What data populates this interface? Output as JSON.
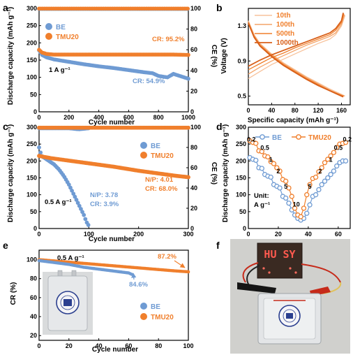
{
  "colors": {
    "be": "#6f9bd3",
    "tmu": "#f07f2c",
    "axis": "#000000"
  },
  "panel_labels": {
    "a": "a",
    "b": "b",
    "c": "c",
    "d": "d",
    "e": "e",
    "f": "f"
  },
  "photo_f": {
    "display_text": "HU SY"
  },
  "chart_data": [
    {
      "panel": "a",
      "type": "scatter",
      "xlabel": "Cycle number",
      "ylabel": "Discharge capacity (mAh g⁻¹)",
      "y2label": "CE (%)",
      "xlim": [
        0,
        1000
      ],
      "ylim": [
        0,
        300
      ],
      "y2lim": [
        0,
        100
      ],
      "xticks": [
        0,
        200,
        400,
        600,
        800,
        1000
      ],
      "yticks": [
        0,
        50,
        100,
        150,
        200,
        250,
        300
      ],
      "y2ticks": [
        0,
        20,
        40,
        60,
        80,
        100
      ],
      "legend": [
        "BE",
        "TMU20"
      ],
      "annotations": {
        "rate": "1 A g⁻¹",
        "cr_tmu": "CR: 95.2%",
        "cr_be": "CR: 54.9%"
      },
      "series": [
        {
          "name": "BE",
          "axis": "left",
          "x": [
            0,
            20,
            50,
            100,
            200,
            300,
            400,
            500,
            600,
            700,
            760,
            800,
            860,
            900,
            950,
            1000
          ],
          "y": [
            178,
            165,
            158,
            152,
            145,
            138,
            132,
            127,
            121,
            115,
            112,
            104,
            100,
            110,
            103,
            96
          ]
        },
        {
          "name": "TMU20",
          "axis": "left",
          "x": [
            0,
            20,
            50,
            100,
            200,
            300,
            400,
            500,
            600,
            700,
            800,
            900,
            1000
          ],
          "y": [
            180,
            172,
            168,
            166,
            166,
            166,
            166,
            166,
            166,
            166,
            166,
            166,
            165
          ]
        },
        {
          "name": "BE",
          "axis": "right",
          "x": [
            0,
            100,
            200,
            300,
            400,
            500,
            600,
            700,
            800,
            900,
            1000
          ],
          "y": [
            99.5,
            99.5,
            99.5,
            99.5,
            99.5,
            99.5,
            99.5,
            99.5,
            99.5,
            99.5,
            99.5
          ]
        },
        {
          "name": "TMU20",
          "axis": "right",
          "x": [
            0,
            100,
            200,
            300,
            400,
            500,
            600,
            700,
            800,
            900,
            1000
          ],
          "y": [
            99.8,
            99.8,
            99.8,
            99.8,
            99.8,
            99.8,
            99.8,
            99.8,
            99.8,
            99.8,
            99.8
          ]
        }
      ]
    },
    {
      "panel": "b",
      "type": "line",
      "xlabel": "Specific capacity (mAh g⁻¹)",
      "ylabel": "Voltage (V)",
      "xlim": [
        0,
        175
      ],
      "ylim": [
        0.4,
        1.5
      ],
      "xticks": [
        0,
        40,
        80,
        120,
        160
      ],
      "yticks": [
        0.5,
        0.9,
        1.3
      ],
      "legend": [
        "10th",
        "100th",
        "500th",
        "1000th"
      ],
      "series": [
        {
          "name": "10th",
          "branch": "discharge",
          "x": [
            0,
            10,
            20,
            40,
            60,
            80,
            100,
            120,
            140,
            160,
            166
          ],
          "y": [
            1.36,
            1.2,
            1.1,
            0.98,
            0.88,
            0.8,
            0.72,
            0.65,
            0.58,
            0.52,
            0.5
          ]
        },
        {
          "name": "10th",
          "branch": "charge",
          "x": [
            0,
            20,
            40,
            60,
            80,
            100,
            120,
            140,
            150,
            160,
            166
          ],
          "y": [
            0.7,
            0.78,
            0.86,
            0.92,
            0.98,
            1.04,
            1.1,
            1.15,
            1.2,
            1.3,
            1.42
          ]
        },
        {
          "name": "100th",
          "branch": "discharge",
          "x": [
            0,
            10,
            20,
            40,
            60,
            80,
            100,
            120,
            140,
            160,
            165
          ],
          "y": [
            1.35,
            1.19,
            1.09,
            0.97,
            0.87,
            0.79,
            0.71,
            0.64,
            0.57,
            0.51,
            0.5
          ]
        },
        {
          "name": "100th",
          "branch": "charge",
          "x": [
            0,
            20,
            40,
            60,
            80,
            100,
            120,
            140,
            150,
            160,
            165
          ],
          "y": [
            0.75,
            0.83,
            0.9,
            0.96,
            1.02,
            1.08,
            1.13,
            1.18,
            1.22,
            1.32,
            1.43
          ]
        },
        {
          "name": "500th",
          "branch": "discharge",
          "x": [
            0,
            10,
            20,
            40,
            60,
            80,
            100,
            120,
            140,
            160,
            164
          ],
          "y": [
            1.34,
            1.18,
            1.08,
            0.96,
            0.86,
            0.78,
            0.7,
            0.63,
            0.56,
            0.51,
            0.5
          ]
        },
        {
          "name": "500th",
          "branch": "charge",
          "x": [
            0,
            20,
            40,
            60,
            80,
            100,
            120,
            140,
            150,
            160,
            164
          ],
          "y": [
            0.8,
            0.87,
            0.94,
            0.99,
            1.05,
            1.1,
            1.15,
            1.2,
            1.25,
            1.34,
            1.44
          ]
        },
        {
          "name": "1000th",
          "branch": "discharge",
          "x": [
            0,
            10,
            20,
            40,
            60,
            80,
            100,
            120,
            140,
            160,
            163
          ],
          "y": [
            1.33,
            1.17,
            1.07,
            0.95,
            0.85,
            0.77,
            0.69,
            0.62,
            0.56,
            0.5,
            0.49
          ]
        },
        {
          "name": "1000th",
          "branch": "charge",
          "x": [
            0,
            20,
            40,
            60,
            80,
            100,
            120,
            140,
            150,
            160,
            163
          ],
          "y": [
            0.84,
            0.91,
            0.97,
            1.02,
            1.07,
            1.12,
            1.17,
            1.22,
            1.27,
            1.36,
            1.45
          ]
        }
      ]
    },
    {
      "panel": "c",
      "type": "scatter",
      "xlabel": "Cycle number",
      "ylabel": "Discharge capacity (mAh g⁻¹)",
      "y2label": "CE (%)",
      "xlim": [
        0,
        300
      ],
      "ylim": [
        0,
        300
      ],
      "y2lim": [
        0,
        100
      ],
      "xticks": [
        0,
        100,
        200,
        300
      ],
      "yticks": [
        0,
        50,
        100,
        150,
        200,
        250,
        300
      ],
      "y2ticks": [
        0,
        20,
        40,
        60,
        80,
        100
      ],
      "legend": [
        "BE",
        "TMU20"
      ],
      "annotations": {
        "rate": "0.5 A g⁻¹",
        "np_be": "N/P: 3.78",
        "cr_be": "CR: 3.9%",
        "np_tmu": "N/P: 4.01",
        "cr_tmu": "CR: 68.0%"
      },
      "series": [
        {
          "name": "BE",
          "axis": "left",
          "x": [
            0,
            5,
            10,
            20,
            30,
            40,
            50,
            60,
            70,
            80,
            90,
            95,
            100
          ],
          "y": [
            240,
            215,
            210,
            200,
            190,
            175,
            155,
            130,
            100,
            70,
            40,
            20,
            8
          ]
        },
        {
          "name": "TMU20",
          "axis": "left",
          "x": [
            0,
            10,
            25,
            50,
            75,
            100,
            125,
            150,
            175,
            200,
            225,
            250,
            275,
            300
          ],
          "y": [
            215,
            212,
            208,
            203,
            198,
            193,
            188,
            183,
            177,
            171,
            166,
            161,
            156,
            152
          ]
        },
        {
          "name": "BE",
          "axis": "right",
          "x": [
            0,
            20,
            40,
            60,
            80,
            100
          ],
          "y": [
            99,
            99,
            99,
            99,
            98,
            99
          ]
        },
        {
          "name": "TMU20",
          "axis": "right",
          "x": [
            0,
            50,
            100,
            150,
            200,
            250,
            300
          ],
          "y": [
            99.5,
            99.5,
            99.5,
            99.5,
            99.5,
            99.5,
            99.5
          ]
        }
      ]
    },
    {
      "panel": "d",
      "type": "line",
      "xlabel": "",
      "ylabel": "Discharge capacity (mAh g⁻¹)",
      "xlim": [
        0,
        68
      ],
      "ylim": [
        0,
        300
      ],
      "xticks": [
        0,
        20,
        40,
        60
      ],
      "yticks": [
        0,
        50,
        100,
        150,
        200,
        250,
        300
      ],
      "legend": [
        "BE",
        "TMU20"
      ],
      "annotations": {
        "unit_label": "Unit:",
        "unit_value": "A g⁻¹"
      },
      "rate_labels": [
        {
          "text": "0.2",
          "x": 2,
          "y": 258
        },
        {
          "text": "0.5",
          "x": 11,
          "y": 233
        },
        {
          "text": "1",
          "x": 15,
          "y": 198
        },
        {
          "text": "2",
          "x": 20,
          "y": 163
        },
        {
          "text": "5",
          "x": 25,
          "y": 118
        },
        {
          "text": "10",
          "x": 32,
          "y": 65
        },
        {
          "text": "5",
          "x": 41,
          "y": 118
        },
        {
          "text": "2",
          "x": 48,
          "y": 163
        },
        {
          "text": "1",
          "x": 55,
          "y": 198
        },
        {
          "text": "0.5",
          "x": 60,
          "y": 233
        },
        {
          "text": "0.2",
          "x": 66,
          "y": 258
        }
      ],
      "series": [
        {
          "name": "BE",
          "x": [
            1,
            3,
            5,
            7,
            9,
            11,
            13,
            15,
            17,
            19,
            21,
            23,
            25,
            27,
            29,
            31,
            33,
            35,
            37,
            39,
            41,
            43,
            45,
            47,
            49,
            51,
            53,
            55,
            57,
            59,
            61,
            63,
            65
          ],
          "y": [
            210,
            205,
            202,
            180,
            178,
            160,
            155,
            152,
            130,
            125,
            120,
            95,
            90,
            75,
            55,
            40,
            30,
            25,
            30,
            45,
            70,
            95,
            100,
            115,
            130,
            140,
            150,
            160,
            170,
            185,
            195,
            200,
            200
          ]
        },
        {
          "name": "TMU20",
          "x": [
            1,
            3,
            5,
            7,
            9,
            11,
            13,
            15,
            17,
            19,
            21,
            23,
            25,
            27,
            29,
            31,
            33,
            35,
            37,
            39,
            41,
            43,
            45,
            47,
            49,
            51,
            53,
            55,
            57,
            59,
            61,
            63,
            65
          ],
          "y": [
            260,
            255,
            252,
            230,
            228,
            215,
            212,
            198,
            192,
            180,
            170,
            145,
            140,
            120,
            95,
            60,
            40,
            35,
            60,
            100,
            130,
            148,
            152,
            168,
            180,
            195,
            205,
            215,
            225,
            240,
            250,
            252,
            255
          ]
        }
      ]
    },
    {
      "panel": "e",
      "type": "scatter",
      "xlabel": "Cycle number",
      "ylabel": "CR (%)",
      "xlim": [
        0,
        100
      ],
      "ylim": [
        15,
        110
      ],
      "xticks": [
        0,
        20,
        40,
        60,
        80,
        100
      ],
      "yticks": [
        20,
        40,
        60,
        80,
        100
      ],
      "legend": [
        "BE",
        "TMU20"
      ],
      "annotations": {
        "rate": "0.5 A g⁻¹",
        "cr_tmu": "87.2%",
        "cr_be": "84.6%"
      },
      "series": [
        {
          "name": "BE",
          "x": [
            0,
            10,
            20,
            30,
            40,
            50,
            60,
            62
          ],
          "y": [
            99,
            97,
            95,
            92,
            90,
            88,
            86,
            84.6
          ]
        },
        {
          "name": "TMU20",
          "x": [
            0,
            10,
            20,
            30,
            40,
            50,
            60,
            70,
            80,
            90,
            100
          ],
          "y": [
            100,
            98.7,
            97.4,
            96.1,
            94.8,
            93.5,
            92.2,
            90.9,
            89.6,
            88.3,
            87.2
          ]
        }
      ]
    }
  ]
}
